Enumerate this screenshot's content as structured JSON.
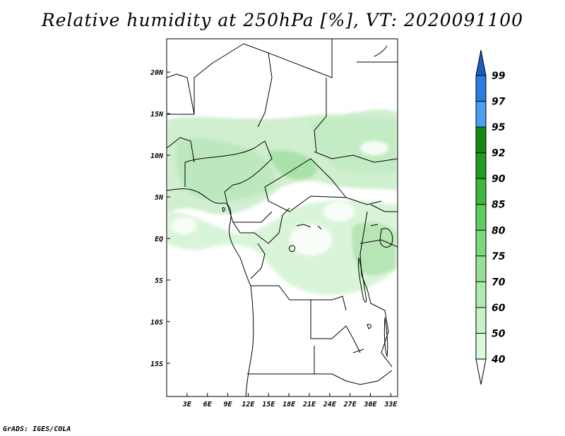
{
  "title": "Relative humidity at 250hPa [%], VT: 2020091100",
  "credit": "GrADS: IGES/COLA",
  "map": {
    "type": "filled-contour-map",
    "lon_range": [
      0,
      34
    ],
    "lat_range": [
      -19,
      24
    ],
    "x_ticks": [
      "3E",
      "6E",
      "9E",
      "12E",
      "15E",
      "18E",
      "21E",
      "24E",
      "27E",
      "30E",
      "33E"
    ],
    "y_ticks": [
      "20N",
      "15N",
      "10N",
      "5N",
      "EQ",
      "5S",
      "10S",
      "15S"
    ]
  },
  "colorbar": {
    "levels": [
      "40",
      "50",
      "60",
      "70",
      "75",
      "80",
      "85",
      "90",
      "92",
      "95",
      "97",
      "99"
    ],
    "colors": [
      "#f0fdf0",
      "#dcf8dc",
      "#c6f2c6",
      "#aeeaae",
      "#96e096",
      "#7cd87c",
      "#5ecc5e",
      "#3cb83c",
      "#229b22",
      "#138813",
      "#4a9ff0",
      "#2a7de0",
      "#1a5fc0"
    ]
  }
}
